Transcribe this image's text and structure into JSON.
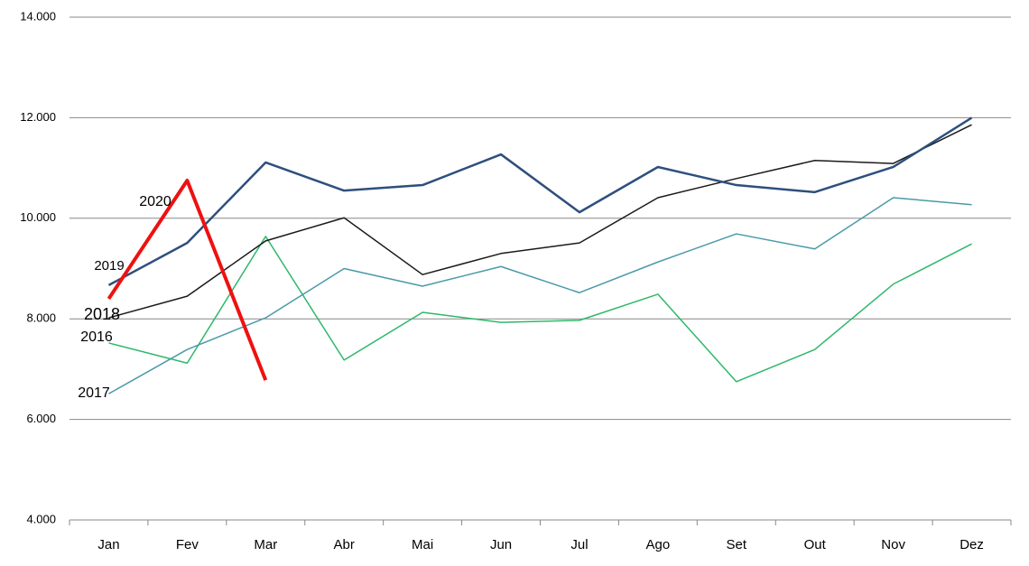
{
  "chart_data": {
    "type": "line",
    "categories": [
      "Jan",
      "Fev",
      "Mar",
      "Abr",
      "Mai",
      "Jun",
      "Jul",
      "Ago",
      "Set",
      "Out",
      "Nov",
      "Dez"
    ],
    "series": [
      {
        "name": "2016",
        "color": "#2eb86a",
        "values": [
          7520,
          7120,
          9640,
          7180,
          8130,
          7930,
          7970,
          8490,
          6750,
          7390,
          8690,
          9490
        ]
      },
      {
        "name": "2017",
        "color": "#4a9aa8",
        "values": [
          6510,
          7390,
          8020,
          9000,
          8650,
          9040,
          8520,
          9130,
          9690,
          9390,
          10410,
          10270
        ]
      },
      {
        "name": "2018",
        "color": "#1a1a1a",
        "values": [
          8020,
          8450,
          9550,
          10010,
          8880,
          9300,
          9510,
          10410,
          10790,
          11150,
          11090,
          11860
        ]
      },
      {
        "name": "2019",
        "color": "#2e4f7e",
        "values": [
          8670,
          9510,
          11110,
          10550,
          10660,
          11270,
          10120,
          11020,
          10660,
          10520,
          11020,
          12000
        ]
      },
      {
        "name": "2020",
        "color": "#ee1111",
        "values": [
          8400,
          10750,
          6780,
          null,
          null,
          null,
          null,
          null,
          null,
          null,
          null,
          null
        ]
      }
    ],
    "ylim": [
      4000,
      14000
    ],
    "yticks": [
      {
        "value": 4000,
        "label": "4.000"
      },
      {
        "value": 6000,
        "label": "6.000"
      },
      {
        "value": 8000,
        "label": "8.000"
      },
      {
        "value": 10000,
        "label": "10.000"
      },
      {
        "value": 12000,
        "label": "12.000"
      },
      {
        "value": 14000,
        "label": "14.000"
      }
    ],
    "grid": true
  }
}
